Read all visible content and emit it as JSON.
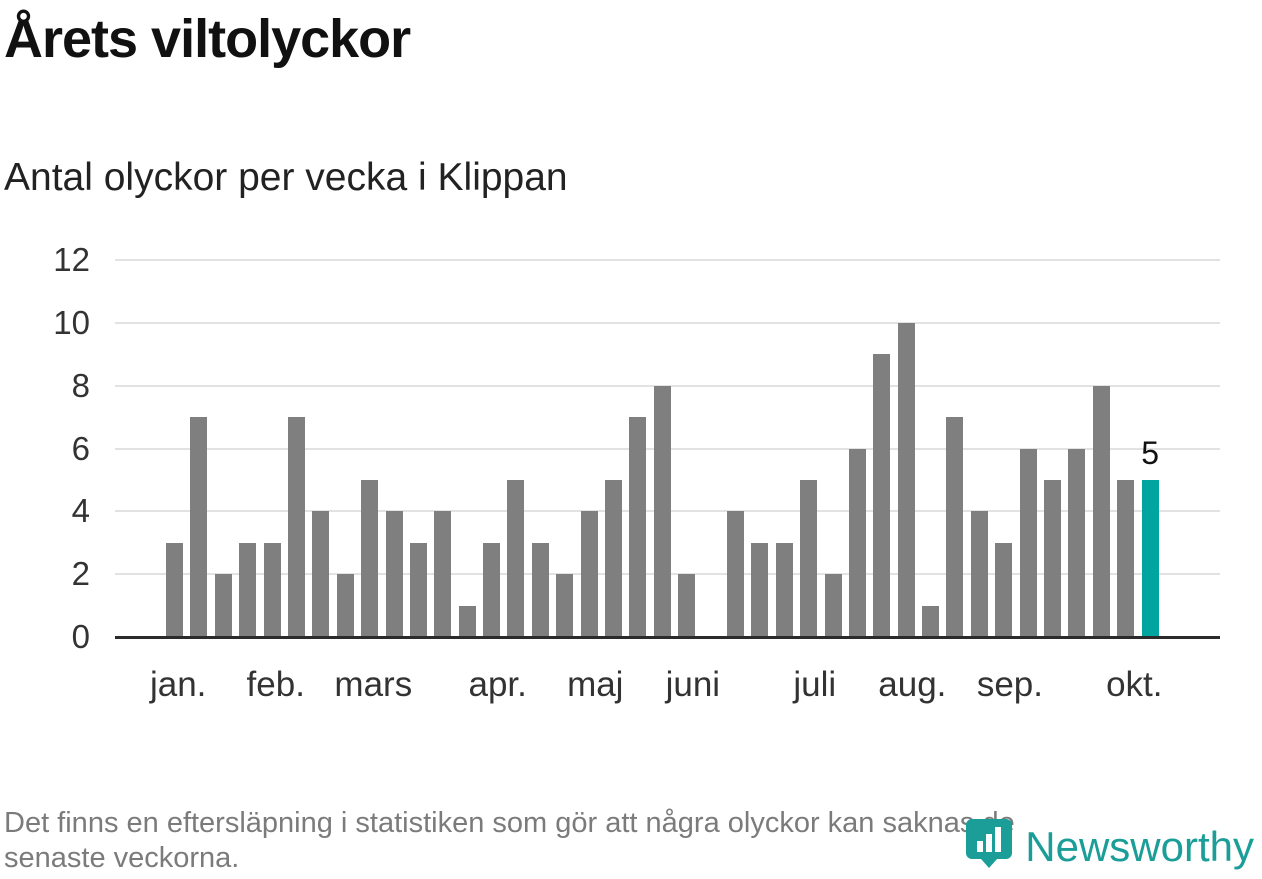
{
  "header": {
    "title": "Årets viltolyckor",
    "subtitle": "Antal olyckor per vecka i Klippan"
  },
  "footer": {
    "note_line1": "Det finns en eftersläpning i statistiken som gör att några olyckor kan saknas de",
    "note_line2": "senaste veckorna.",
    "brand": "Newsworthy"
  },
  "colors": {
    "bar": "#7f7f7f",
    "highlight": "#00a5a0",
    "brand": "#1b9e98",
    "gridline": "#e2e2e2",
    "axis": "#2b2b2b"
  },
  "chart_data": {
    "type": "bar",
    "title": "Årets viltolyckor",
    "subtitle": "Antal olyckor per vecka i Klippan",
    "unit": "olyckor per vecka",
    "values": [
      3,
      7,
      2,
      3,
      3,
      7,
      4,
      2,
      5,
      4,
      3,
      4,
      1,
      3,
      5,
      3,
      2,
      4,
      5,
      7,
      8,
      2,
      0,
      4,
      3,
      3,
      5,
      2,
      6,
      9,
      10,
      1,
      7,
      4,
      3,
      6,
      5,
      6,
      8,
      5,
      5
    ],
    "highlight_index": 40,
    "highlight_value_label": "5",
    "ylim": [
      0,
      12
    ],
    "y_ticks": [
      0,
      2,
      4,
      6,
      8,
      10,
      12
    ],
    "x_ticks": [
      {
        "label": "jan.",
        "slot": 0.5
      },
      {
        "label": "feb.",
        "slot": 4.5
      },
      {
        "label": "mars",
        "slot": 8.5
      },
      {
        "label": "apr.",
        "slot": 13.6
      },
      {
        "label": "maj",
        "slot": 17.6
      },
      {
        "label": "juni",
        "slot": 21.6
      },
      {
        "label": "juli",
        "slot": 26.6
      },
      {
        "label": "aug.",
        "slot": 30.6
      },
      {
        "label": "sep.",
        "slot": 34.6
      },
      {
        "label": "okt.",
        "slot": 39.7
      }
    ],
    "grid": "horizontal",
    "legend": "none"
  }
}
